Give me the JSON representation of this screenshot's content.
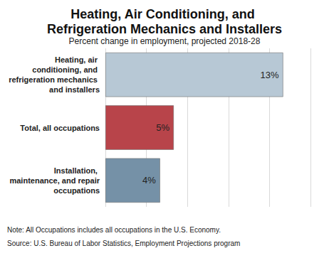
{
  "chart_data": {
    "type": "bar",
    "title": "Heating, Air Conditioning, and Refrigeration Mechanics and Installers",
    "subtitle": "Percent change in employment, projected 2018-28",
    "orientation": "horizontal",
    "categories": [
      "Heating, air conditioning, and refrigeration mechanics and installers",
      "Total, all occupations",
      "Installation, maintenance, and repair occupations"
    ],
    "values": [
      13,
      5,
      4
    ],
    "value_labels": [
      "13%",
      "5%",
      "4%"
    ],
    "colors": [
      "#b7c8d5",
      "#b8444a",
      "#7591a7"
    ],
    "xlim": [
      0,
      15
    ],
    "xticks": [
      0,
      3,
      6,
      9,
      12,
      15
    ],
    "grid": true,
    "data_labels": true,
    "tick_labels": "y",
    "annotations": [
      "Note: All Occupations includes all occupations in the U.S. Economy.",
      "Source: U.S. Bureau of Labor Statistics, Employment Projections program"
    ]
  }
}
